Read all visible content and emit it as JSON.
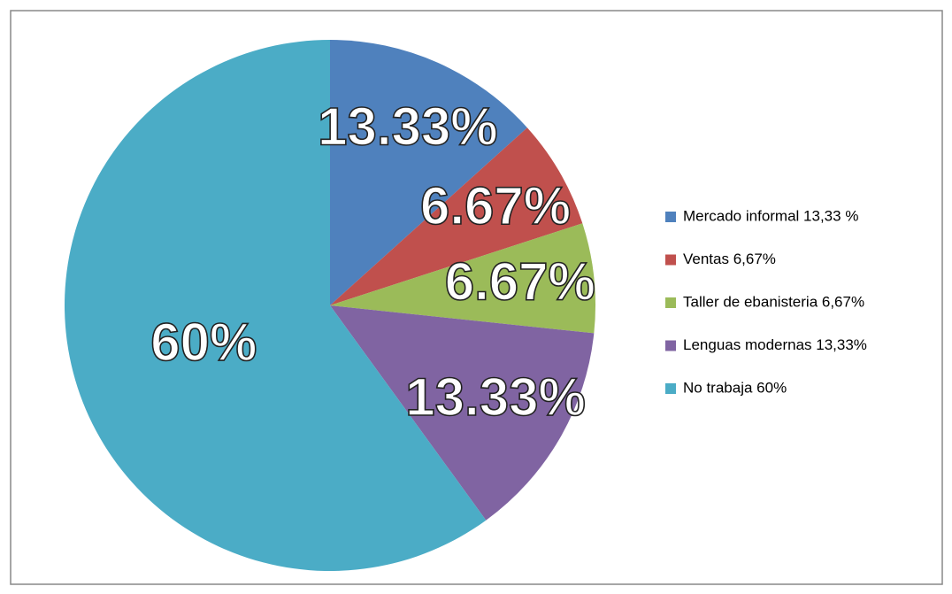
{
  "chart_data": {
    "type": "pie",
    "categories": [
      "Mercado informal 13,33 %",
      "Ventas 6,67%",
      "Taller de ebanisteria 6,67%",
      "Lenguas modernas 13,33%",
      "No trabaja 60%"
    ],
    "values": [
      13.33,
      6.67,
      6.67,
      13.33,
      60
    ],
    "value_labels": [
      "13.33%",
      "6.67%",
      "6.67%",
      "13.33%",
      "60%"
    ],
    "colors": [
      "#4f81bd",
      "#c0504d",
      "#9bbb59",
      "#8064a2",
      "#4bacc6"
    ],
    "legend": "right"
  }
}
